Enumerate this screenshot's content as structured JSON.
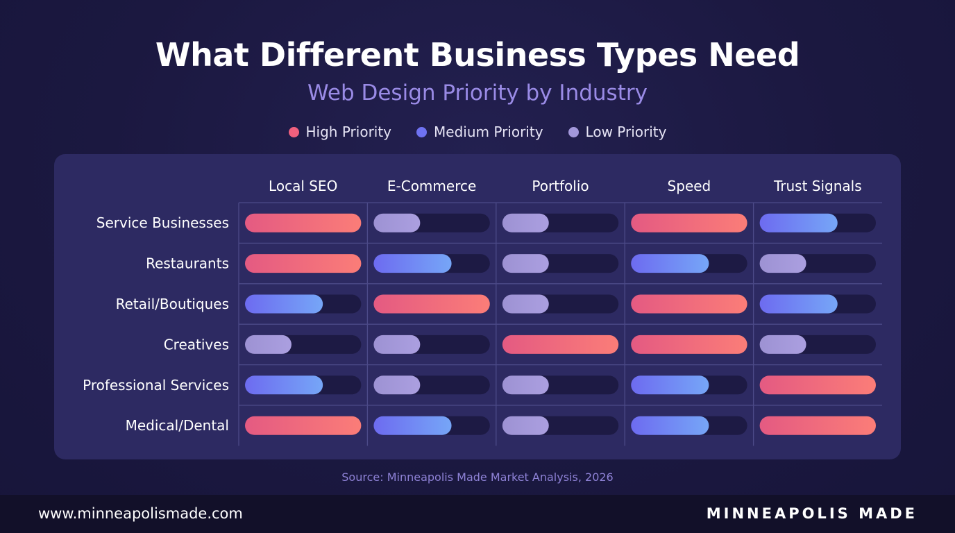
{
  "header": {
    "title": "What Different Business Types Need",
    "subtitle": "Web Design Priority by Industry"
  },
  "legend": [
    {
      "label": "High Priority",
      "color": "#f0607e"
    },
    {
      "label": "Medium Priority",
      "color": "#6f72f2"
    },
    {
      "label": "Low Priority",
      "color": "#a398db"
    }
  ],
  "chart_data": {
    "type": "heatmap",
    "title": "What Different Business Types Need",
    "subtitle": "Web Design Priority by Industry",
    "columns": [
      "Local SEO",
      "E-Commerce",
      "Portfolio",
      "Speed",
      "Trust Signals"
    ],
    "rows": [
      "Service Businesses",
      "Restaurants",
      "Retail/Boutiques",
      "Creatives",
      "Professional Services",
      "Medical/Dental"
    ],
    "levels": [
      "Low Priority",
      "Medium Priority",
      "High Priority"
    ],
    "fill_fraction": {
      "High Priority": 1.0,
      "Medium Priority": 0.67,
      "Low Priority": 0.4
    },
    "values": [
      [
        "High Priority",
        "Low Priority",
        "Low Priority",
        "High Priority",
        "Medium Priority"
      ],
      [
        "High Priority",
        "Medium Priority",
        "Low Priority",
        "Medium Priority",
        "Low Priority"
      ],
      [
        "Medium Priority",
        "High Priority",
        "Low Priority",
        "High Priority",
        "Medium Priority"
      ],
      [
        "Low Priority",
        "Low Priority",
        "High Priority",
        "High Priority",
        "Low Priority"
      ],
      [
        "Medium Priority",
        "Low Priority",
        "Low Priority",
        "Medium Priority",
        "High Priority"
      ],
      [
        "High Priority",
        "Medium Priority",
        "Low Priority",
        "Medium Priority",
        "High Priority"
      ]
    ],
    "colors": {
      "High Priority": [
        "#e45a82",
        "#fb7d78"
      ],
      "Medium Priority": [
        "#6d6bf0",
        "#76a6f7"
      ],
      "Low Priority": [
        "#9d92d3",
        "#ab9fe0"
      ],
      "track": "#1d1a44",
      "grid": "#4c4a88"
    }
  },
  "source": "Source: Minneapolis Made Market Analysis, 2026",
  "footer": {
    "url": "www.minneapolismade.com",
    "brand": "MINNEAPOLIS MADE"
  }
}
